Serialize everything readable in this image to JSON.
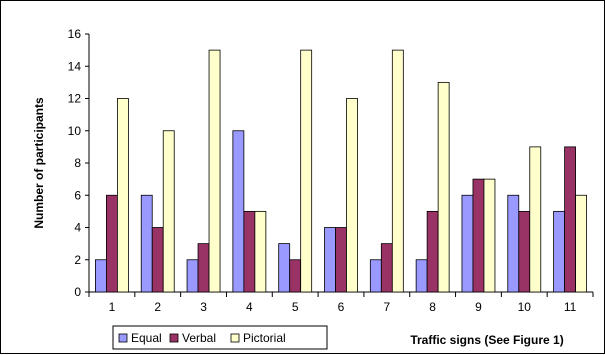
{
  "chart_data": {
    "type": "bar",
    "categories": [
      "1",
      "2",
      "3",
      "4",
      "5",
      "6",
      "7",
      "8",
      "9",
      "10",
      "11"
    ],
    "series": [
      {
        "name": "Equal",
        "color": "#9999FF",
        "values": [
          2,
          6,
          2,
          10,
          3,
          4,
          2,
          2,
          6,
          6,
          5
        ]
      },
      {
        "name": "Verbal",
        "color": "#993366",
        "values": [
          6,
          4,
          3,
          5,
          2,
          4,
          3,
          5,
          7,
          5,
          9
        ]
      },
      {
        "name": "Pictorial",
        "color": "#FFFFCC",
        "values": [
          12,
          10,
          15,
          5,
          15,
          12,
          15,
          13,
          7,
          9,
          6
        ]
      }
    ],
    "xlabel": "Traffic signs (See Figure 1)",
    "ylabel": "Number of participants",
    "ylim": [
      0,
      16
    ],
    "yticks": [
      0,
      2,
      4,
      6,
      8,
      10,
      12,
      14,
      16
    ],
    "grid": false,
    "legend_position": "bottom-left"
  }
}
